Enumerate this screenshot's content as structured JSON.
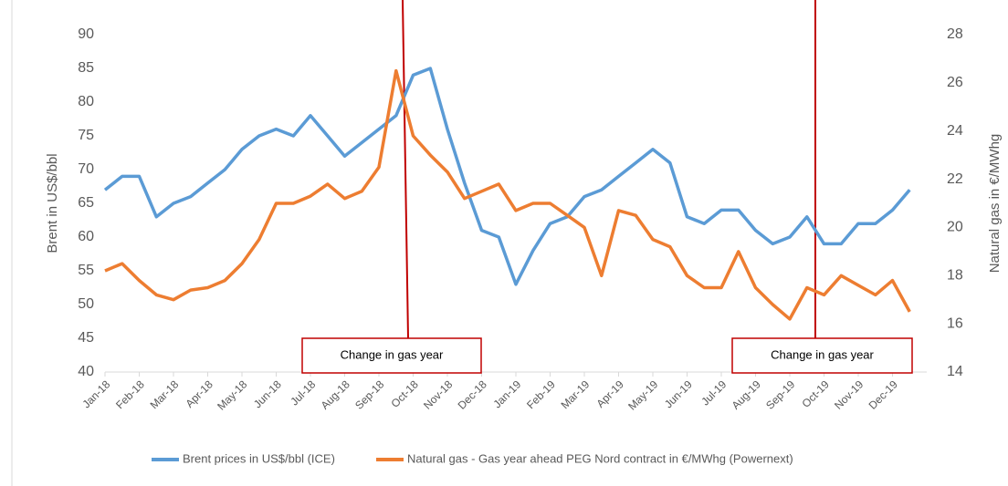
{
  "chart_data": {
    "type": "line",
    "categories": [
      "Jan-18",
      null,
      "Feb-18",
      null,
      "Mar-18",
      null,
      "Apr-18",
      null,
      "May-18",
      null,
      "Jun-18",
      null,
      "Jul-18",
      null,
      "Aug-18",
      null,
      "Sep-18",
      null,
      "Oct-18",
      null,
      "Nov-18",
      null,
      "Dec-18",
      null,
      "Jan-19",
      null,
      "Feb-19",
      null,
      "Mar-19",
      null,
      "Apr-19",
      null,
      "May-19",
      null,
      "Jun-19",
      null,
      "Jul-19",
      null,
      "Aug-19",
      null,
      "Sep-19",
      null,
      "Oct-19",
      null,
      "Nov-19",
      null,
      "Dec-19",
      null
    ],
    "series": [
      {
        "name": "Brent prices in US$/bbl (ICE)",
        "color": "#5b9bd5",
        "axis": "y",
        "values": [
          67,
          69,
          69,
          63,
          65,
          66,
          68,
          70,
          73,
          75,
          76,
          75,
          78,
          75,
          72,
          74,
          76,
          78,
          84,
          85,
          76,
          68,
          61,
          60,
          53,
          58,
          62,
          63,
          66,
          67,
          69,
          71,
          73,
          71,
          63,
          62,
          64,
          64,
          61,
          59,
          60,
          63,
          59,
          59,
          62,
          62,
          64,
          67
        ]
      },
      {
        "name": "Natural gas - Gas year ahead PEG Nord contract in €/MWhg (Powernext)",
        "color": "#ed7d31",
        "axis": "y2",
        "values": [
          18.2,
          18.5,
          17.8,
          17.2,
          17.0,
          17.4,
          17.5,
          17.8,
          18.5,
          19.5,
          21.0,
          21.0,
          21.3,
          21.8,
          21.2,
          21.5,
          22.5,
          26.5,
          23.8,
          23.0,
          22.3,
          21.2,
          21.5,
          21.8,
          20.7,
          21.0,
          21.0,
          20.5,
          20.0,
          18.0,
          20.7,
          20.5,
          19.5,
          19.2,
          18.0,
          17.5,
          17.5,
          19.0,
          17.5,
          16.8,
          16.2,
          17.5,
          17.2,
          18.0,
          17.6,
          17.2,
          17.8,
          16.5
        ]
      }
    ],
    "ylabel": "Brent in US$/bbl",
    "y2label": "Natural gas in €/MWhg",
    "ylim": [
      40,
      90
    ],
    "yticks": [
      40,
      45,
      50,
      55,
      60,
      65,
      70,
      75,
      80,
      85,
      90
    ],
    "y2lim": [
      14,
      28
    ],
    "y2ticks": [
      14,
      16,
      18,
      20,
      22,
      24,
      26,
      28
    ],
    "annotations": [
      "Change in gas year",
      "Change in gas year"
    ],
    "legend": "bottom"
  }
}
